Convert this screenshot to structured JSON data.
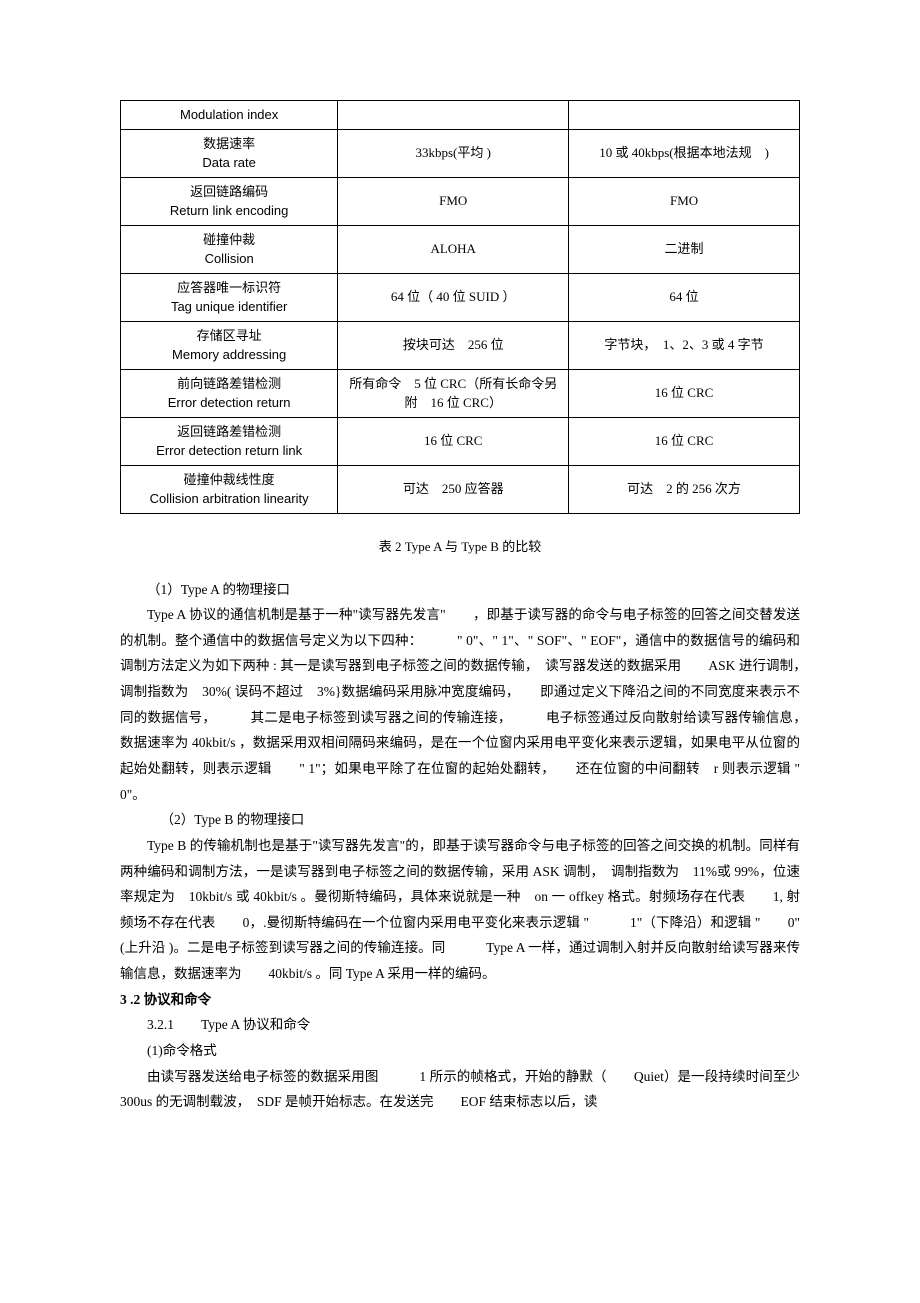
{
  "table": {
    "rows": [
      {
        "name_cn": "",
        "name_en": "Modulation index",
        "a": "",
        "b": ""
      },
      {
        "name_cn": "数据速率",
        "name_en": "Data rate",
        "a": "33kbps(平均 )",
        "b": "10 或 40kbps(根据本地法规　)"
      },
      {
        "name_cn": "返回链路编码",
        "name_en": "Return link encoding",
        "a": "FMO",
        "b": "FMO"
      },
      {
        "name_cn": "碰撞仲裁",
        "name_en": "Collision",
        "a": "ALOHA",
        "b": "二进制"
      },
      {
        "name_cn": "应答器唯一标识符",
        "name_en": "Tag unique identifier",
        "a": "64 位（ 40 位 SUID ）",
        "b": "64 位"
      },
      {
        "name_cn": "存储区寻址",
        "name_en": "Memory addressing",
        "a": "按块可达　256 位",
        "b": "字节块，　1、2、3 或 4 字节"
      },
      {
        "name_cn": "前向链路差错检测",
        "name_en": "Error detection return",
        "a": "所有命令　5 位 CRC（所有长命令另附　16 位 CRC）",
        "b": "16 位 CRC"
      },
      {
        "name_cn": "返回链路差错检测",
        "name_en": "Error detection return link",
        "a": "16 位 CRC",
        "b": "16 位 CRC"
      },
      {
        "name_cn": "碰撞仲裁线性度",
        "name_en": "Collision arbitration linearity",
        "a": "可达　250 应答器",
        "b": "可达　2 的 256 次方"
      }
    ]
  },
  "caption": "表 2 Type A  与  Type B  的比较",
  "paragraphs": {
    "h1": "（1）Type A  的物理接口",
    "p1a": "Type A  协议的通信机制是基于一种\"读写器先发言\"　　，即基于读写器的命令与电子标签的回答之间交替发送的机制。整个通信中的数据信号定义为以下四种：　　　\" 0\"、\" 1\"、\" SOF\"、\" EOF\"，通信中的数据信号的编码和调制方法定义为如下两种 : 其一是读写器到电子标签之间的数据传输，　读写器发送的数据采用　　ASK  进行调制，　调制指数为　30%( 误码不超过　3%}数据编码采用脉冲宽度编码，　　即通过定义下降沿之间的不同宽度来表示不同的数据信号，　　　其二是电子标签到读写器之间的传输连接，　　　电子标签通过反向散射给读写器传输信息，　　　数据速率为  40kbit/s ，数据采用双相间隔码来编码，是在一个位窗内采用电平变化来表示逻辑，如果电平从位窗的起始处翻转，则表示逻辑　　\" 1\"；如果电平除了在位窗的起始处翻转，　　还在位窗的中间翻转　r 则表示逻辑 \"　0\"。",
    "h2": "（2）Type B  的物理接口",
    "p2a": "Type  B  的传输机制也是基于\"读写器先发言\"的，即基于读写器命令与电子标签的回答之间交换的机制。同样有两种编码和调制方法，一是读写器到电子标签之间的数据传输，采用 ASK 调制，　调制指数为　11%或 99%，位速率规定为　10kbit/s 或 40kbit/s 。曼彻斯特编码，具体来说就是一种　on 一  offkey  格式。射频场存在代表　　1, 射频场不存在代表　　0，.曼彻斯特编码在一个位窗内采用电平变化来表示逻辑 \"　　　1\"（下降沿）和逻辑 \"　　0\" (上升沿  )。二是电子标签到读写器之间的传输连接。同　　　Type A  一样，通过调制入射并反向散射给读写器来传输信息，数据速率为　　40kbit/s 。同  Type A  采用一样的编码。",
    "sec": "3 .2  协议和命令",
    "sub": "3.2.1　　Type A  协议和命令",
    "cmd": "(1)命令格式",
    "p3a": "由读写器发送给电子标签的数据采用图　　　1 所示的帧格式，开始的静默（　　Quiet）是一段持续时间至少　300us 的无调制载波，　SDF 是帧开始标志。在发送完　　EOF 结束标志以后，读"
  }
}
